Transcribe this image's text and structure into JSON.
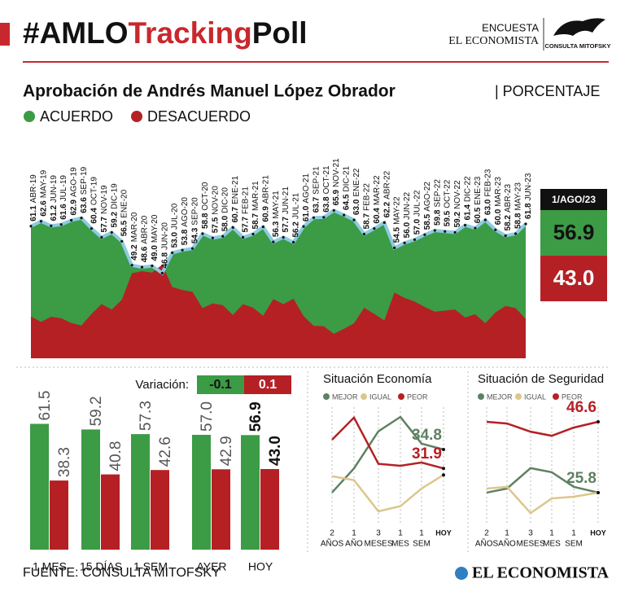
{
  "header": {
    "hashtag": [
      "#AMLO",
      "Tracking",
      "Poll"
    ]
  },
  "brand": {
    "encuesta": "ENCUESTA",
    "name": "EL ECONOMISTA",
    "logo": "CONSULTA MITOFSKY"
  },
  "chart_data": [
    {
      "type": "area",
      "title": "Aprobación de Andrés Manuel López Obrador",
      "unit": "| PORCENTAJE",
      "legend": [
        {
          "name": "ACUERDO",
          "color": "#3c9b45"
        },
        {
          "name": "DESACUERDO",
          "color": "#b52025"
        }
      ],
      "line_color": "#8ccbe0",
      "months": [
        "ABR-19",
        "MAY-19",
        "JUN-19",
        "JUL-19",
        "AGO-19",
        "SEP-19",
        "OCT-19",
        "NOV-19",
        "DIC-19",
        "ENE-20",
        "MAR-20",
        "ABR-20",
        "MAY-20",
        "JUN-20",
        "JUL-20",
        "AGO-20",
        "SEP-20",
        "OCT-20",
        "NOV-20",
        "DIC-20",
        "ENE-21",
        "FEB-21",
        "MAR-21",
        "ABR-21",
        "MAY-21",
        "JUN-21",
        "JUL-21",
        "AGO-21",
        "SEP-21",
        "OCT-21",
        "NOV-21",
        "DIC-21",
        "ENE-22",
        "FEB-22",
        "MAR-22",
        "ABR-22",
        "MAY-22",
        "JUN-22",
        "JUL-22",
        "AGO-22",
        "SEP-22",
        "OCT-22",
        "NOV-22",
        "DIC-22",
        "ENE-23",
        "FEB-23",
        "MAR-23",
        "ABR-23",
        "MAY-23",
        "JUN-23"
      ],
      "values": [
        61.1,
        62.6,
        61.2,
        61.6,
        62.9,
        63.6,
        60.4,
        57.7,
        59.2,
        56.5,
        49.2,
        48.6,
        49.0,
        46.8,
        53.0,
        53.8,
        54.3,
        58.8,
        57.5,
        58.0,
        60.7,
        57.7,
        58.7,
        60.9,
        56.3,
        57.7,
        56.2,
        61.0,
        63.7,
        63.8,
        65.9,
        64.5,
        63.0,
        58.7,
        60.4,
        62.2,
        54.5,
        56.0,
        57.0,
        58.5,
        59.8,
        59.5,
        59.2,
        61.4,
        60.5,
        63.0,
        60.0,
        58.2,
        58.8,
        61.8
      ],
      "value_labels": [
        "61.1",
        "62.6",
        "61.2",
        "61.6",
        "62.9",
        "63.6",
        "60.4",
        "57.7",
        "59.2",
        "56.5",
        "49.2",
        "48.6",
        "49.0",
        "46.8",
        "53.0",
        "53.8",
        "54.3",
        "58.8",
        "57.5",
        "58.0",
        "60.7",
        "57.7",
        "58.7",
        "60.9",
        "56.3",
        "57.7",
        "56.2",
        "61.0",
        "63.7",
        "63.8",
        "65.9",
        "64.5",
        "63.0",
        "58.7",
        "60.4",
        "62.2",
        "54.5",
        "56.0",
        "57.0",
        "58.5",
        "59.8",
        "59.5",
        "59.2",
        "61.4",
        "60.5",
        "63.0",
        "60.0",
        "58.2",
        "58.8",
        "61.8"
      ],
      "latest": {
        "date": "1/AGO/23",
        "values": [
          56.9,
          43.0
        ],
        "value_labels": [
          "56.9",
          "43.0"
        ]
      }
    },
    {
      "type": "bar",
      "variation": {
        "label": "Variación:",
        "values": [
          -0.1,
          0.1
        ]
      },
      "categories": [
        "1 MES",
        "15 DÍAS",
        "1 SEM",
        "AYER",
        "HOY"
      ],
      "series": [
        {
          "color": "#3c9b45",
          "values": [
            61.5,
            59.2,
            57.3,
            57.0,
            56.9
          ],
          "value_labels": [
            "61.5",
            "59.2",
            "57.3",
            "57.0",
            "56.9"
          ]
        },
        {
          "color": "#b52025",
          "values": [
            38.3,
            40.8,
            42.6,
            42.9,
            43.0
          ],
          "value_labels": [
            "38.3",
            "40.8",
            "42.6",
            "42.9",
            "43.0"
          ]
        }
      ]
    },
    {
      "type": "line",
      "title": "Situación Economía",
      "categories": [
        [
          "2",
          "AÑOS"
        ],
        [
          "1",
          "AÑO"
        ],
        [
          "3",
          "MESES"
        ],
        [
          "1",
          "MES"
        ],
        [
          "1",
          "SEM"
        ],
        [
          "HOY"
        ]
      ],
      "series": [
        {
          "name": "MEJOR",
          "color": "#5e8162",
          "values": [
            28.2,
            31.9,
            37.6,
            39.8,
            35.7,
            34.8
          ],
          "end_label": true
        },
        {
          "name": "IGUAL",
          "color": "#dcc68c",
          "values": [
            30.7,
            30.1,
            25.3,
            26.1,
            28.8,
            30.9
          ],
          "end_label": false
        },
        {
          "name": "PEOR",
          "color": "#b52025",
          "values": [
            36.3,
            39.7,
            32.6,
            32.3,
            32.8,
            31.9
          ],
          "end_label": true
        }
      ]
    },
    {
      "type": "line",
      "title": "Situación de Seguridad",
      "categories": [
        [
          "2",
          "AÑOS"
        ],
        [
          "1",
          "AÑO"
        ],
        [
          "3",
          "MESES"
        ],
        [
          "1",
          "MES"
        ],
        [
          "1",
          "SEM"
        ],
        [
          "HOY"
        ]
      ],
      "series": [
        {
          "name": "MEJOR",
          "color": "#5e8162",
          "values": [
            25.8,
            27.0,
            33.0,
            31.8,
            27.5,
            25.8
          ],
          "end_label": true
        },
        {
          "name": "IGUAL",
          "color": "#dcc68c",
          "values": [
            27.0,
            27.5,
            19.8,
            24.1,
            24.6,
            25.8
          ],
          "end_label": false
        },
        {
          "name": "PEOR",
          "color": "#b52025",
          "values": [
            46.6,
            46.1,
            43.7,
            42.5,
            44.9,
            46.6
          ],
          "end_label": true
        }
      ]
    }
  ],
  "footer": {
    "source": "FUENTE: CONSULTA MITOFSKY",
    "brand": "EL ECONOMISTA"
  }
}
